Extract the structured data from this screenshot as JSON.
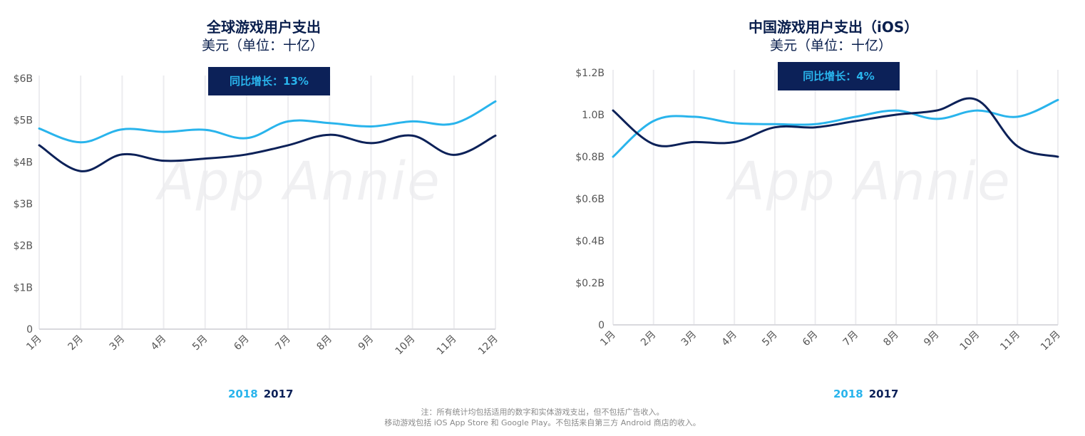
{
  "colors": {
    "series_2018": "#29b4ec",
    "series_2017": "#0c2158",
    "grid": "#ececef",
    "axis_text": "#555555"
  },
  "watermark": "App Annie",
  "charts": [
    {
      "title": "全球游戏用户支出",
      "subtitle": "美元（单位：十亿）",
      "yoy": "同比增长：13%",
      "legend": {
        "a": "2018",
        "b": "2017"
      }
    },
    {
      "title": "中国游戏用户支出（iOS）",
      "subtitle": "美元（单位：十亿）",
      "yoy": "同比增长：4%",
      "legend": {
        "a": "2018",
        "b": "2017"
      }
    }
  ],
  "chart_data": [
    {
      "type": "line",
      "title": "全球游戏用户支出",
      "subtitle": "美元（单位：十亿）",
      "categories": [
        "1月",
        "2月",
        "3月",
        "4月",
        "5月",
        "6月",
        "7月",
        "8月",
        "9月",
        "10月",
        "11月",
        "12月"
      ],
      "ylim": [
        0,
        6
      ],
      "yticks": [
        0,
        1,
        2,
        3,
        4,
        5,
        6
      ],
      "ytick_labels": [
        "0",
        "$1B",
        "$2B",
        "$3B",
        "$4B",
        "$5B",
        "$6B"
      ],
      "grid": "vertical",
      "legend_position": "bottom-left",
      "annotation": "同比增长：13%",
      "series": [
        {
          "name": "2018",
          "values": [
            4.8,
            4.47,
            4.78,
            4.72,
            4.77,
            4.57,
            4.97,
            4.93,
            4.85,
            4.97,
            4.92,
            5.45
          ]
        },
        {
          "name": "2017",
          "values": [
            4.4,
            3.78,
            4.18,
            4.03,
            4.08,
            4.18,
            4.4,
            4.65,
            4.45,
            4.63,
            4.17,
            4.63
          ]
        }
      ]
    },
    {
      "type": "line",
      "title": "中国游戏用户支出（iOS）",
      "subtitle": "美元（单位：十亿）",
      "categories": [
        "1月",
        "2月",
        "3月",
        "4月",
        "5月",
        "6月",
        "7月",
        "8月",
        "9月",
        "10月",
        "11月",
        "12月"
      ],
      "ylim": [
        0,
        1.2
      ],
      "yticks": [
        0,
        0.2,
        0.4,
        0.6,
        0.8,
        1.0,
        1.2
      ],
      "ytick_labels": [
        "0",
        "$0.2B",
        "$0.4B",
        "$0.6B",
        "$0.8B",
        "1.0B",
        "$1.2B"
      ],
      "grid": "vertical",
      "legend_position": "bottom-left",
      "annotation": "同比增长：4%",
      "series": [
        {
          "name": "2018",
          "values": [
            0.8,
            0.97,
            0.99,
            0.96,
            0.955,
            0.955,
            0.99,
            1.02,
            0.98,
            1.02,
            0.99,
            1.07
          ]
        },
        {
          "name": "2017",
          "values": [
            1.02,
            0.86,
            0.87,
            0.87,
            0.94,
            0.94,
            0.97,
            1.0,
            1.02,
            1.07,
            0.85,
            0.8
          ]
        }
      ]
    }
  ],
  "footnote": {
    "line1": "注：所有统计均包括适用的数字和实体游戏支出，但不包括广告收入。",
    "line2": "移动游戏包括 iOS App Store 和 Google Play。不包括来自第三方 Android 商店的收入。"
  }
}
